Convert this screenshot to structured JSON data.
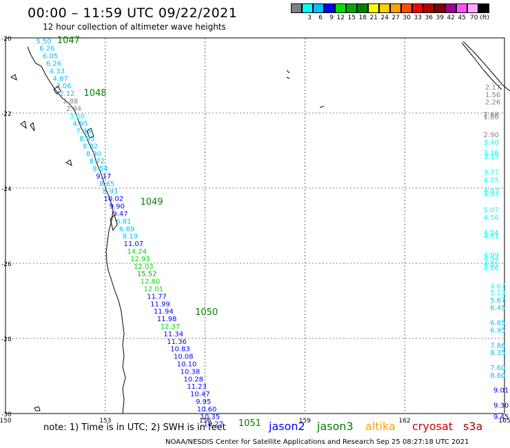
{
  "title": "00:00 – 11:59 UTC 09/22/2021",
  "subtitle": "12 hour collection of altimeter wave heights",
  "legend": {
    "colors": [
      "#808080",
      "#00ffff",
      "#00bfff",
      "#0000ff",
      "#00dd00",
      "#00aa00",
      "#008000",
      "#ffff00",
      "#ffd000",
      "#ffa000",
      "#ff5000",
      "#ff0000",
      "#b00000",
      "#800000",
      "#a00090",
      "#ff55ff",
      "#ffaaff",
      "#000000"
    ],
    "labels": [
      "3",
      "6",
      "9",
      "12",
      "15",
      "18",
      "21",
      "24",
      "27",
      "30",
      "33",
      "36",
      "39",
      "42",
      "45",
      "70 (ft)"
    ]
  },
  "map": {
    "lon_ticks": [
      "150",
      "153",
      "156",
      "159",
      "162",
      "165"
    ],
    "lat_ticks": [
      "-20",
      "-22",
      "-24",
      "-26",
      "-28",
      "-30"
    ],
    "lon_range": [
      150,
      165
    ],
    "lat_range": [
      -30,
      -20
    ]
  },
  "main_track": [
    {
      "lat": -20.07,
      "lon": 151.15,
      "v": "5.50",
      "c": "#00bfff"
    },
    {
      "lat": -20.27,
      "lon": 151.25,
      "v": "6.26",
      "c": "#00bfff"
    },
    {
      "lat": -20.47,
      "lon": 151.35,
      "v": "6.05",
      "c": "#00bfff"
    },
    {
      "lat": -20.67,
      "lon": 151.45,
      "v": "6.26",
      "c": "#00bfff"
    },
    {
      "lat": -20.87,
      "lon": 151.55,
      "v": "4.33",
      "c": "#00bfff"
    },
    {
      "lat": -21.07,
      "lon": 151.65,
      "v": "4.87",
      "c": "#00bfff"
    },
    {
      "lat": -21.27,
      "lon": 151.75,
      "v": "3.06",
      "c": "#00bfff"
    },
    {
      "lat": -21.47,
      "lon": 151.85,
      "v": "2.12",
      "c": "#00bfff"
    },
    {
      "lat": -21.67,
      "lon": 151.95,
      "v": "1.88",
      "c": "#808080"
    },
    {
      "lat": -21.87,
      "lon": 152.05,
      "v": "2.94",
      "c": "#808080"
    },
    {
      "lat": -22.07,
      "lon": 152.15,
      "v": "3.08",
      "c": "#00ffff"
    },
    {
      "lat": -22.27,
      "lon": 152.25,
      "v": "4.95",
      "c": "#00bfff"
    },
    {
      "lat": -22.47,
      "lon": 152.35,
      "v": "7.36",
      "c": "#00bfff"
    },
    {
      "lat": -22.67,
      "lon": 152.45,
      "v": "8.93",
      "c": "#00bfff"
    },
    {
      "lat": -22.87,
      "lon": 152.55,
      "v": "8.32",
      "c": "#00bfff"
    },
    {
      "lat": -23.07,
      "lon": 152.65,
      "v": "8.90",
      "c": "#00bfff"
    },
    {
      "lat": -23.27,
      "lon": 152.75,
      "v": "8.72",
      "c": "#00bfff"
    },
    {
      "lat": -23.47,
      "lon": 152.85,
      "v": "8.54",
      "c": "#00bfff"
    },
    {
      "lat": -23.67,
      "lon": 152.95,
      "v": "9.17",
      "c": "#0000ff"
    },
    {
      "lat": -23.87,
      "lon": 153.05,
      "v": "8.85",
      "c": "#00bfff"
    },
    {
      "lat": -24.07,
      "lon": 153.15,
      "v": "8.93",
      "c": "#00bfff"
    },
    {
      "lat": -24.27,
      "lon": 153.25,
      "v": "10.02",
      "c": "#0000ff"
    },
    {
      "lat": -24.47,
      "lon": 153.35,
      "v": "9.90",
      "c": "#0000ff"
    },
    {
      "lat": -24.67,
      "lon": 153.45,
      "v": "9.47",
      "c": "#0000ff"
    },
    {
      "lat": -24.87,
      "lon": 153.55,
      "v": "6.81",
      "c": "#00bfff"
    },
    {
      "lat": -25.07,
      "lon": 153.65,
      "v": "6.69",
      "c": "#00bfff"
    },
    {
      "lat": -25.27,
      "lon": 153.75,
      "v": "8.19",
      "c": "#00bfff"
    },
    {
      "lat": -25.47,
      "lon": 153.85,
      "v": "11.07",
      "c": "#0000ff"
    },
    {
      "lat": -25.67,
      "lon": 153.95,
      "v": "14.24",
      "c": "#00dd00"
    },
    {
      "lat": -25.87,
      "lon": 154.05,
      "v": "12.93",
      "c": "#00dd00"
    },
    {
      "lat": -26.07,
      "lon": 154.15,
      "v": "12.03",
      "c": "#00dd00"
    },
    {
      "lat": -26.27,
      "lon": 154.25,
      "v": "15.52",
      "c": "#00aa00"
    },
    {
      "lat": -26.47,
      "lon": 154.35,
      "v": "12.80",
      "c": "#00dd00"
    },
    {
      "lat": -26.67,
      "lon": 154.45,
      "v": "12.01",
      "c": "#00dd00"
    },
    {
      "lat": -26.87,
      "lon": 154.55,
      "v": "11.77",
      "c": "#0000ff"
    },
    {
      "lat": -27.07,
      "lon": 154.65,
      "v": "11.99",
      "c": "#0000ff"
    },
    {
      "lat": -27.27,
      "lon": 154.75,
      "v": "11.94",
      "c": "#0000ff"
    },
    {
      "lat": -27.47,
      "lon": 154.85,
      "v": "11.98",
      "c": "#0000ff"
    },
    {
      "lat": -27.67,
      "lon": 154.95,
      "v": "12.37",
      "c": "#00dd00"
    },
    {
      "lat": -27.87,
      "lon": 155.05,
      "v": "11.34",
      "c": "#0000ff"
    },
    {
      "lat": -28.07,
      "lon": 155.15,
      "v": "11.36",
      "c": "#0000ff"
    },
    {
      "lat": -28.27,
      "lon": 155.25,
      "v": "10.83",
      "c": "#0000ff"
    },
    {
      "lat": -28.47,
      "lon": 155.35,
      "v": "10.08",
      "c": "#0000ff"
    },
    {
      "lat": -28.67,
      "lon": 155.45,
      "v": "10.10",
      "c": "#0000ff"
    },
    {
      "lat": -28.87,
      "lon": 155.55,
      "v": "10.38",
      "c": "#0000ff"
    },
    {
      "lat": -29.07,
      "lon": 155.65,
      "v": "10.28",
      "c": "#0000ff"
    },
    {
      "lat": -29.27,
      "lon": 155.75,
      "v": "11.23",
      "c": "#0000ff"
    },
    {
      "lat": -29.47,
      "lon": 155.85,
      "v": "10.47",
      "c": "#0000ff"
    },
    {
      "lat": -29.67,
      "lon": 155.95,
      "v": "9.95",
      "c": "#0000ff"
    },
    {
      "lat": -29.87,
      "lon": 156.05,
      "v": "10.60",
      "c": "#0000ff"
    },
    {
      "lat": -30.07,
      "lon": 156.15,
      "v": "10.35",
      "c": "#0000ff"
    },
    {
      "lat": -30.27,
      "lon": 156.25,
      "v": "10.27",
      "c": "#0000ff"
    }
  ],
  "east_track": [
    {
      "lat": -21.3,
      "lon": 164.65,
      "v": "2.17",
      "c": "#808080"
    },
    {
      "lat": -21.5,
      "lon": 164.65,
      "v": "1.56",
      "c": "#808080"
    },
    {
      "lat": -21.7,
      "lon": 164.65,
      "v": "2.26",
      "c": "#808080"
    },
    {
      "lat": -22.03,
      "lon": 164.6,
      "v": "2.68",
      "c": "#808080"
    },
    {
      "lat": -22.09,
      "lon": 164.6,
      "v": "1.80",
      "c": "#808080"
    },
    {
      "lat": -22.57,
      "lon": 164.6,
      "v": "2.90",
      "c": "#808080"
    },
    {
      "lat": -22.77,
      "lon": 164.6,
      "v": "3.40",
      "c": "#00ffff"
    },
    {
      "lat": -23.05,
      "lon": 164.6,
      "v": "3.16",
      "c": "#00ffff"
    },
    {
      "lat": -23.15,
      "lon": 164.6,
      "v": "3.15",
      "c": "#00ffff"
    },
    {
      "lat": -23.57,
      "lon": 164.6,
      "v": "3.77",
      "c": "#00ffff"
    },
    {
      "lat": -23.77,
      "lon": 164.6,
      "v": "4.25",
      "c": "#00ffff"
    },
    {
      "lat": -24.05,
      "lon": 164.6,
      "v": "4.83",
      "c": "#00ffff"
    },
    {
      "lat": -24.15,
      "lon": 164.6,
      "v": "4.93",
      "c": "#00ffff"
    },
    {
      "lat": -24.57,
      "lon": 164.6,
      "v": "5.07",
      "c": "#00ffff"
    },
    {
      "lat": -24.77,
      "lon": 164.6,
      "v": "4.56",
      "c": "#00ffff"
    },
    {
      "lat": -25.17,
      "lon": 164.6,
      "v": "4.54",
      "c": "#00ffff"
    },
    {
      "lat": -25.27,
      "lon": 164.6,
      "v": "4.81",
      "c": "#00ffff"
    },
    {
      "lat": -25.77,
      "lon": 164.6,
      "v": "4.99",
      "c": "#00ffff"
    },
    {
      "lat": -25.87,
      "lon": 164.6,
      "v": "4.94",
      "c": "#00ffff"
    },
    {
      "lat": -26.01,
      "lon": 164.6,
      "v": "4.81",
      "c": "#00ffff"
    },
    {
      "lat": -26.11,
      "lon": 164.6,
      "v": "4.86",
      "c": "#00ffff"
    },
    {
      "lat": -26.6,
      "lon": 164.8,
      "v": "4.67",
      "c": "#00ffff"
    },
    {
      "lat": -26.77,
      "lon": 164.8,
      "v": "5.13",
      "c": "#00ffff"
    },
    {
      "lat": -26.97,
      "lon": 164.8,
      "v": "5.67",
      "c": "#00bfff"
    },
    {
      "lat": -27.17,
      "lon": 164.8,
      "v": "6.45",
      "c": "#00bfff"
    },
    {
      "lat": -27.57,
      "lon": 164.8,
      "v": "6.65",
      "c": "#00bfff"
    },
    {
      "lat": -27.77,
      "lon": 164.8,
      "v": "6.95",
      "c": "#00bfff"
    },
    {
      "lat": -28.17,
      "lon": 164.8,
      "v": "7.86",
      "c": "#00bfff"
    },
    {
      "lat": -28.37,
      "lon": 164.8,
      "v": "8.35",
      "c": "#00bfff"
    },
    {
      "lat": -28.77,
      "lon": 164.8,
      "v": "7.60",
      "c": "#00bfff"
    },
    {
      "lat": -28.97,
      "lon": 164.8,
      "v": "8.60",
      "c": "#00bfff"
    },
    {
      "lat": -29.37,
      "lon": 164.9,
      "v": "9.01",
      "c": "#0000ff"
    },
    {
      "lat": -29.77,
      "lon": 164.9,
      "v": "9.30",
      "c": "#0000ff"
    },
    {
      "lat": -30.07,
      "lon": 164.9,
      "v": "9.45",
      "c": "#0000ff"
    }
  ],
  "orbit_labels": [
    {
      "lat": -20.05,
      "lon": 151.55,
      "t": "1047"
    },
    {
      "lat": -21.45,
      "lon": 152.35,
      "t": "1048"
    },
    {
      "lat": -24.35,
      "lon": 154.05,
      "t": "1049"
    },
    {
      "lat": -27.28,
      "lon": 155.7,
      "t": "1050"
    },
    {
      "lat": -30.24,
      "lon": 157.0,
      "t": "1051"
    }
  ],
  "footer": {
    "note": "note:  1) Time is in UTC;  2) SWH is in feet",
    "satellites": [
      {
        "name": "jason2",
        "color": "#0000ff"
      },
      {
        "name": "jason3",
        "color": "#008000"
      },
      {
        "name": "altika",
        "color": "#ffa000"
      },
      {
        "name": "cryosat",
        "color": "#cc0000"
      },
      {
        "name": "s3a",
        "color": "#aa0000"
      }
    ],
    "credit": "NOAA/NESDIS Center for Satellite Applications and Research    Sep 25 08:27:18 UTC 2021"
  }
}
